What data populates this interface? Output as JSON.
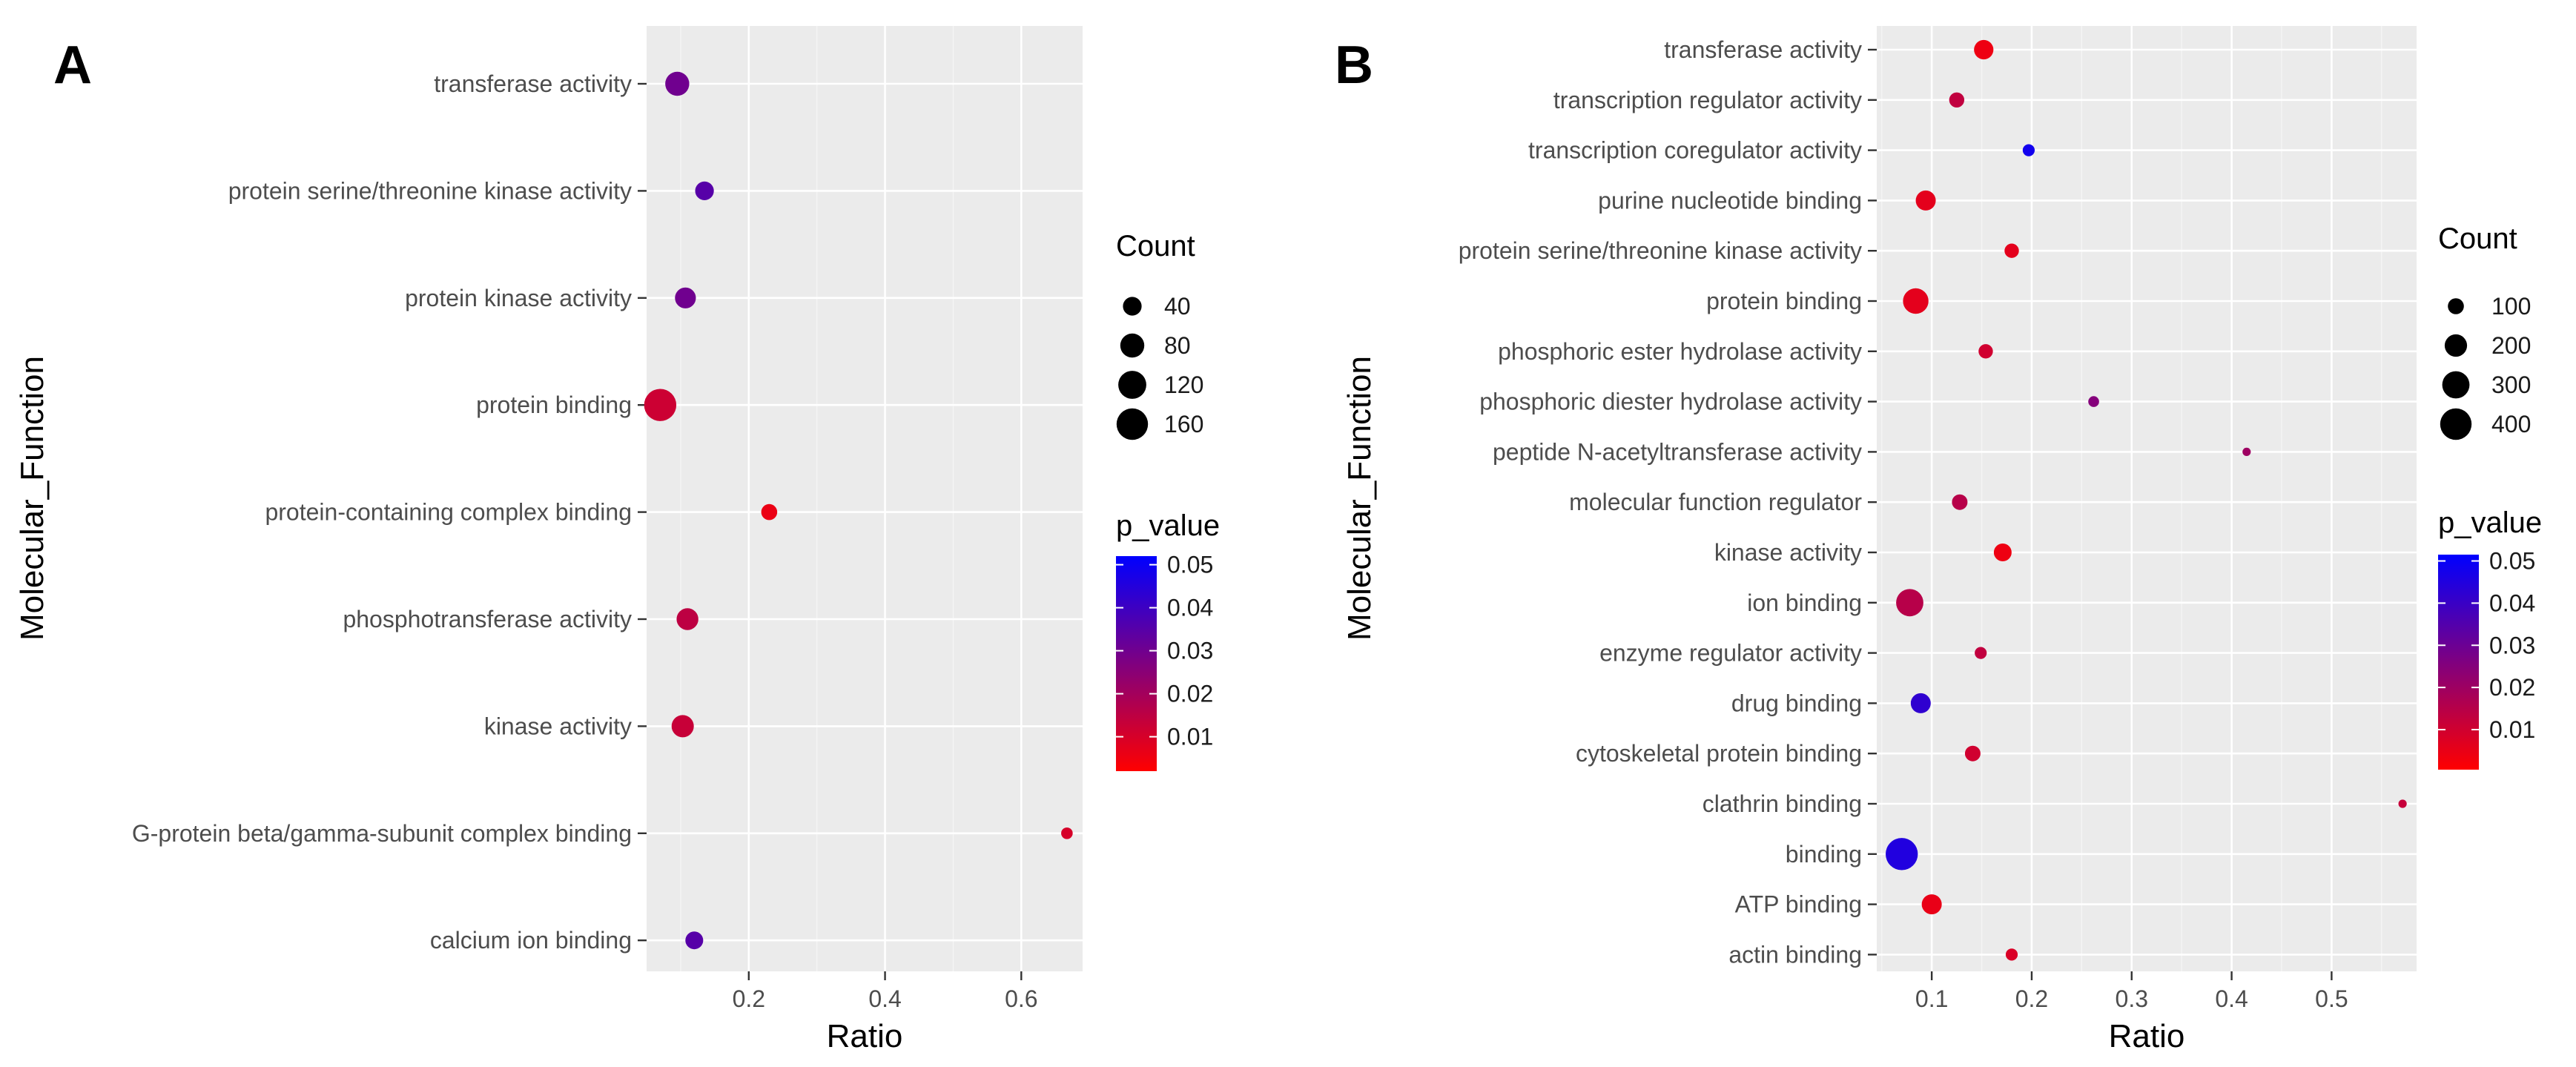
{
  "chart_data": [
    {
      "type": "scatter",
      "panel_label": "A",
      "xlabel": "Ratio",
      "ylabel": "Molecular_Function",
      "xlim": [
        0.05,
        0.69
      ],
      "xticks": [
        0.2,
        0.4,
        0.6
      ],
      "xtick_labels": [
        "0.2",
        "0.4",
        "0.6"
      ],
      "categories": [
        "transferase activity",
        "protein serine/threonine kinase activity",
        "protein kinase activity",
        "protein binding",
        "protein-containing complex binding",
        "phosphotransferase activity",
        "kinase activity",
        "G-protein beta/gamma-subunit complex binding",
        "calcium ion binding"
      ],
      "points": [
        {
          "term": "transferase activity",
          "ratio": 0.095,
          "count": 80,
          "p_value": 0.03
        },
        {
          "term": "protein serine/threonine kinase activity",
          "ratio": 0.135,
          "count": 40,
          "p_value": 0.035
        },
        {
          "term": "protein kinase activity",
          "ratio": 0.107,
          "count": 55,
          "p_value": 0.03
        },
        {
          "term": "protein binding",
          "ratio": 0.07,
          "count": 170,
          "p_value": 0.012
        },
        {
          "term": "protein-containing complex binding",
          "ratio": 0.23,
          "count": 25,
          "p_value": 0.006
        },
        {
          "term": "phosphotransferase activity",
          "ratio": 0.11,
          "count": 62,
          "p_value": 0.015
        },
        {
          "term": "kinase activity",
          "ratio": 0.103,
          "count": 65,
          "p_value": 0.013
        },
        {
          "term": "G-protein beta/gamma-subunit complex binding",
          "ratio": 0.667,
          "count": 8,
          "p_value": 0.01
        },
        {
          "term": "calcium ion binding",
          "ratio": 0.12,
          "count": 35,
          "p_value": 0.035
        }
      ],
      "size_legend": {
        "title": "Count",
        "breaks": [
          40,
          80,
          120,
          160
        ],
        "labels": [
          "40",
          "80",
          "120",
          "160"
        ],
        "count_range": [
          5,
          175
        ]
      },
      "color_legend": {
        "title": "p_value",
        "breaks": [
          0.05,
          0.04,
          0.03,
          0.02,
          0.01
        ],
        "labels": [
          "0.05",
          "0.04",
          "0.03",
          "0.02",
          "0.01"
        ],
        "range": [
          0.002,
          0.052
        ],
        "low_color": "#ff0000",
        "high_color": "#0000ff"
      }
    },
    {
      "type": "scatter",
      "panel_label": "B",
      "xlabel": "Ratio",
      "ylabel": "Molecular_Function",
      "xlim": [
        0.045,
        0.585
      ],
      "xticks": [
        0.1,
        0.2,
        0.3,
        0.4,
        0.5
      ],
      "xtick_labels": [
        "0.1",
        "0.2",
        "0.3",
        "0.4",
        "0.5"
      ],
      "categories": [
        "transferase activity",
        "transcription regulator activity",
        "transcription coregulator activity",
        "purine nucleotide binding",
        "protein serine/threonine kinase activity",
        "protein binding",
        "phosphoric ester hydrolase activity",
        "phosphoric diester hydrolase activity",
        "peptide N-acetyltransferase activity",
        "molecular function regulator",
        "kinase activity",
        "ion binding",
        "enzyme regulator activity",
        "drug binding",
        "cytoskeletal protein binding",
        "clathrin binding",
        "binding",
        "ATP binding",
        "actin binding"
      ],
      "points": [
        {
          "term": "transferase activity",
          "ratio": 0.152,
          "count": 150,
          "p_value": 0.004
        },
        {
          "term": "transcription regulator activity",
          "ratio": 0.125,
          "count": 90,
          "p_value": 0.013
        },
        {
          "term": "transcription coregulator activity",
          "ratio": 0.197,
          "count": 55,
          "p_value": 0.048
        },
        {
          "term": "purine nucleotide binding",
          "ratio": 0.094,
          "count": 160,
          "p_value": 0.006
        },
        {
          "term": "protein serine/threonine kinase activity",
          "ratio": 0.18,
          "count": 80,
          "p_value": 0.006
        },
        {
          "term": "protein binding",
          "ratio": 0.084,
          "count": 260,
          "p_value": 0.006
        },
        {
          "term": "phosphoric ester hydrolase activity",
          "ratio": 0.154,
          "count": 80,
          "p_value": 0.01
        },
        {
          "term": "phosphoric diester hydrolase activity",
          "ratio": 0.262,
          "count": 45,
          "p_value": 0.025
        },
        {
          "term": "peptide N-acetyltransferase activity",
          "ratio": 0.415,
          "count": 25,
          "p_value": 0.02
        },
        {
          "term": "molecular function regulator",
          "ratio": 0.128,
          "count": 95,
          "p_value": 0.015
        },
        {
          "term": "kinase activity",
          "ratio": 0.171,
          "count": 125,
          "p_value": 0.004
        },
        {
          "term": "ion binding",
          "ratio": 0.078,
          "count": 300,
          "p_value": 0.015
        },
        {
          "term": "enzyme regulator activity",
          "ratio": 0.149,
          "count": 55,
          "p_value": 0.013
        },
        {
          "term": "drug binding",
          "ratio": 0.089,
          "count": 160,
          "p_value": 0.042
        },
        {
          "term": "cytoskeletal protein binding",
          "ratio": 0.141,
          "count": 95,
          "p_value": 0.01
        },
        {
          "term": "clathrin binding",
          "ratio": 0.571,
          "count": 25,
          "p_value": 0.012
        },
        {
          "term": "binding",
          "ratio": 0.07,
          "count": 420,
          "p_value": 0.045
        },
        {
          "term": "ATP binding",
          "ratio": 0.1,
          "count": 160,
          "p_value": 0.005
        },
        {
          "term": "actin binding",
          "ratio": 0.18,
          "count": 55,
          "p_value": 0.008
        }
      ],
      "size_legend": {
        "title": "Count",
        "breaks": [
          100,
          200,
          300,
          400
        ],
        "labels": [
          "100",
          "200",
          "300",
          "400"
        ],
        "count_range": [
          20,
          430
        ]
      },
      "color_legend": {
        "title": "p_value",
        "breaks": [
          0.05,
          0.04,
          0.03,
          0.02,
          0.01
        ],
        "labels": [
          "0.05",
          "0.04",
          "0.03",
          "0.02",
          "0.01"
        ],
        "range": [
          0.0005,
          0.0515
        ],
        "low_color": "#ff0000",
        "high_color": "#0000ff"
      }
    }
  ]
}
